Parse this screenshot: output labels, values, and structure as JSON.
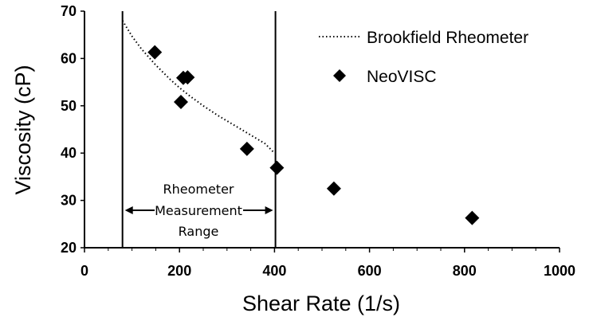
{
  "chart_data": {
    "type": "scatter",
    "xlabel": "Shear Rate (1/s)",
    "ylabel": "Viscosity (cP)",
    "xlim": [
      0,
      1000
    ],
    "ylim": [
      20,
      70
    ],
    "x_ticks": [
      "0",
      "200",
      "400",
      "600",
      "800",
      "1000"
    ],
    "y_ticks": [
      "20",
      "30",
      "40",
      "50",
      "60",
      "70"
    ],
    "grid": false,
    "legend_position": "top-right",
    "series": [
      {
        "name": "Brookfield Rheometer",
        "style": "dotted-line",
        "color": "#000000",
        "x": [
          80,
          100,
          120,
          150,
          180,
          200,
          220,
          250,
          280,
          300,
          320,
          350,
          380,
          400
        ],
        "y": [
          68,
          64.7,
          62,
          58.6,
          55.6,
          53.8,
          52.2,
          50,
          48,
          46.8,
          45.6,
          43.8,
          42,
          40
        ]
      },
      {
        "name": "NeoVISC",
        "style": "diamond-marker",
        "color": "#000000",
        "x": [
          148,
          203,
          208,
          217,
          342,
          405,
          525,
          816
        ],
        "y": [
          61.3,
          50.8,
          55.9,
          56,
          40.9,
          36.9,
          32.5,
          26.3
        ]
      }
    ],
    "reference_lines_x": [
      80,
      402
    ],
    "annotation": {
      "lines": [
        "Rheometer",
        "Measurement",
        "Range"
      ]
    }
  }
}
